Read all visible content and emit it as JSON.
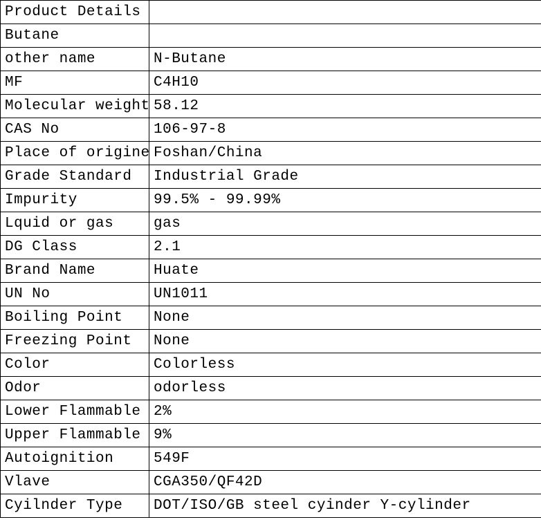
{
  "table": {
    "columns": {
      "col1_width": 215,
      "col2_width": 567
    },
    "cell_border_color": "#000000",
    "background_color": "#ffffff",
    "text_color": "#000000",
    "font_family": "SimSun / fixed-width serif",
    "font_size_pt": 16,
    "rows": [
      {
        "label": "Product Details",
        "value": ""
      },
      {
        "label": "Butane",
        "value": ""
      },
      {
        "label": "other name",
        "value": "N-Butane"
      },
      {
        "label": "MF",
        "value": "C4H10"
      },
      {
        "label": "Molecular weight",
        "value": "58.12"
      },
      {
        "label": "CAS No",
        "value": "106-97-8"
      },
      {
        "label": "Place of origine",
        "value": "Foshan/China"
      },
      {
        "label": "Grade Standard",
        "value": "Industrial Grade"
      },
      {
        "label": "Impurity",
        "value": "99.5% - 99.99%"
      },
      {
        "label": "Lquid or gas",
        "value": "gas"
      },
      {
        "label": "DG Class",
        "value": "2.1"
      },
      {
        "label": "Brand Name",
        "value": "Huate"
      },
      {
        "label": "UN No",
        "value": "UN1011"
      },
      {
        "label": "Boiling Point",
        "value": "None"
      },
      {
        "label": "Freezing Point",
        "value": "None"
      },
      {
        "label": "Color",
        "value": "Colorless"
      },
      {
        "label": "Odor",
        "value": "odorless"
      },
      {
        "label": "Lower Flammable Li",
        "value": "2%"
      },
      {
        "label": "Upper Flammable li",
        "value": "9%"
      },
      {
        "label": "Autoignition",
        "value": "549F"
      },
      {
        "label": "Vlave",
        "value": "CGA350/QF42D"
      },
      {
        "label": "Cyilnder Type",
        "value": "DOT/ISO/GB steel cyinder  Y-cylinder"
      }
    ]
  }
}
